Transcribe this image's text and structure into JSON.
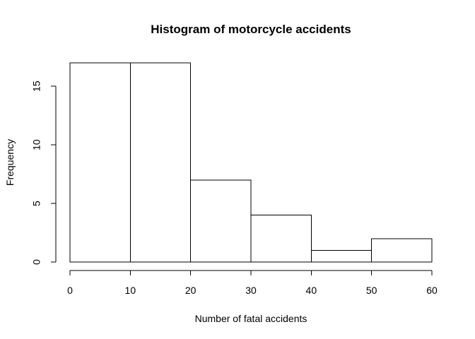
{
  "chart_data": {
    "type": "bar",
    "title": "Histogram of motorcycle accidents",
    "xlabel": "Number of fatal accidents",
    "ylabel": "Frequency",
    "bins": [
      {
        "x0": 0,
        "x1": 10,
        "value": 17
      },
      {
        "x0": 10,
        "x1": 20,
        "value": 17
      },
      {
        "x0": 20,
        "x1": 30,
        "value": 7
      },
      {
        "x0": 30,
        "x1": 40,
        "value": 4
      },
      {
        "x0": 40,
        "x1": 50,
        "value": 1
      },
      {
        "x0": 50,
        "x1": 60,
        "value": 2
      }
    ],
    "xlim": [
      0,
      60
    ],
    "ylim": [
      0,
      17
    ],
    "xticks": [
      0,
      10,
      20,
      30,
      40,
      50,
      60
    ],
    "yticks": [
      0,
      5,
      10,
      15
    ],
    "grid": false,
    "bar_fill": "#ffffff",
    "bar_stroke": "#000000"
  }
}
